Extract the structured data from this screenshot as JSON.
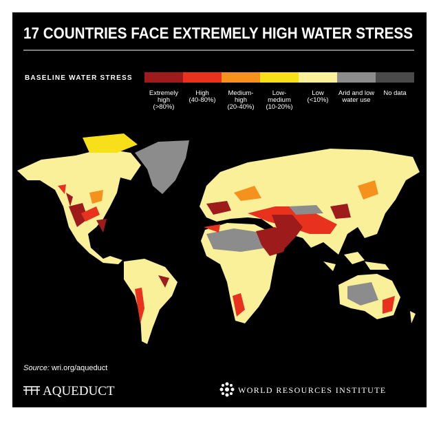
{
  "header": {
    "title": "17 COUNTRIES FACE EXTREMELY HIGH WATER STRESS"
  },
  "legend": {
    "title": "BASELINE WATER STRESS",
    "items": [
      {
        "lines": [
          "Extremely",
          "high",
          "(>80%)"
        ],
        "color": "#9e1b1b"
      },
      {
        "lines": [
          "High",
          "(40-80%)"
        ],
        "color": "#e8321e"
      },
      {
        "lines": [
          "Medium-",
          "high",
          "(20-40%)"
        ],
        "color": "#f5921e"
      },
      {
        "lines": [
          "Low-",
          "medium",
          "(10-20%)"
        ],
        "color": "#f7e01a"
      },
      {
        "lines": [
          "Low",
          "(<10%)"
        ],
        "color": "#fbf09a"
      },
      {
        "lines": [
          "Arid and low",
          "water use"
        ],
        "color": "#8c8c8c"
      },
      {
        "lines": [
          "No data"
        ],
        "color": "#4a4a4a"
      }
    ]
  },
  "source": {
    "prefix": "Source:",
    "text": "wri.org/aqueduct"
  },
  "footer": {
    "left_logo": "AQUEDUCT",
    "right_logo": "WORLD RESOURCES INSTITUTE"
  }
}
